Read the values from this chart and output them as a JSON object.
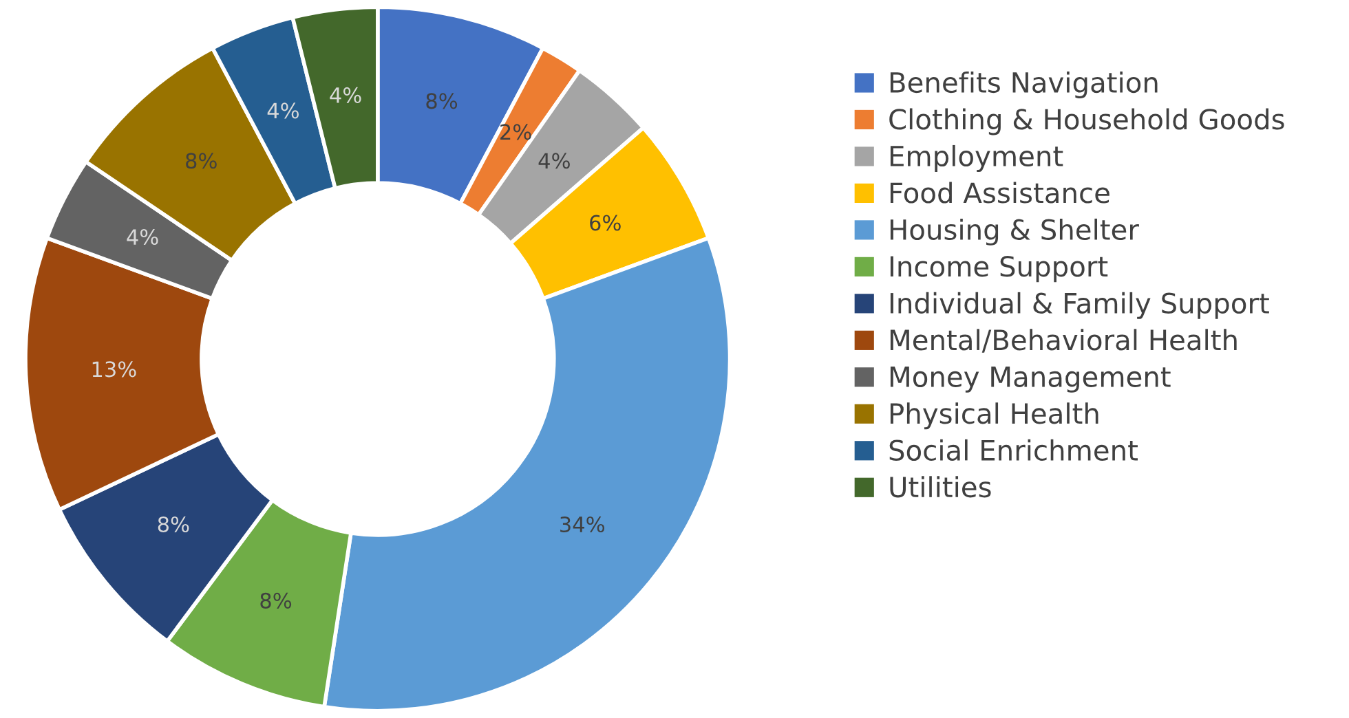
{
  "chart_data": {
    "type": "donut",
    "categories": [
      "Benefits Navigation",
      "Clothing & Household Goods",
      "Employment",
      "Food Assistance",
      "Housing & Shelter",
      "Income Support",
      "Individual & Family Support",
      "Mental/Behavioral Health",
      "Money Management",
      "Physical Health",
      "Social Enrichment",
      "Utilities"
    ],
    "values": [
      8,
      2,
      4,
      6,
      34,
      8,
      8,
      13,
      4,
      8,
      4,
      4
    ],
    "value_labels": [
      "8%",
      "2%",
      "4%",
      "6%",
      "34%",
      "8%",
      "8%",
      "13%",
      "4%",
      "8%",
      "4%",
      "4%"
    ],
    "colors": [
      "#4472c4",
      "#ed7d31",
      "#a5a5a5",
      "#ffc000",
      "#5b9bd5",
      "#70ad47",
      "#264478",
      "#9e480e",
      "#636363",
      "#997300",
      "#255e91",
      "#43682b"
    ],
    "legend": "right"
  }
}
